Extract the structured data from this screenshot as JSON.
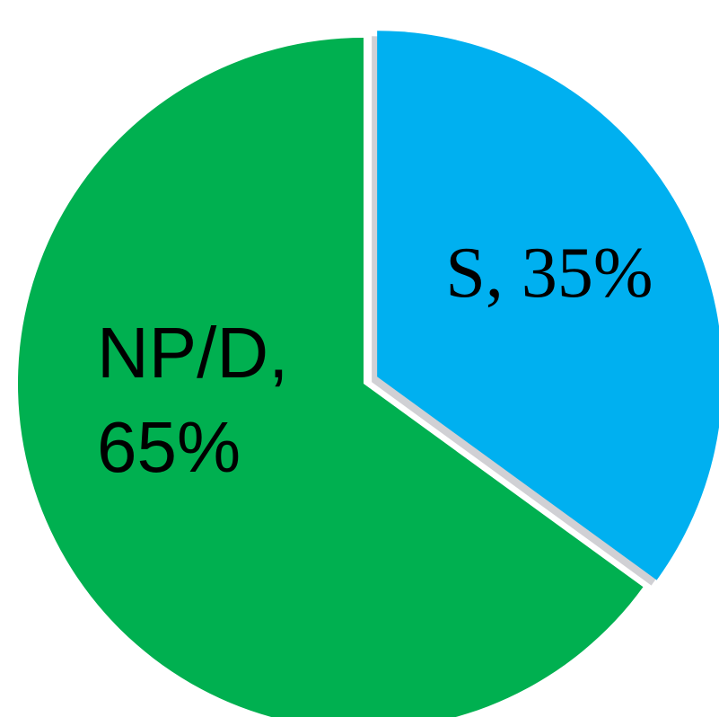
{
  "chart_data": {
    "type": "pie",
    "values": [
      35,
      65
    ],
    "value_labels": [
      "S, 35%",
      "NP/D, 65%"
    ],
    "colors": [
      "#00b0f0",
      "#00b050"
    ],
    "explode": [
      true,
      false
    ],
    "start_angle": 0,
    "direction": "clockwise"
  }
}
